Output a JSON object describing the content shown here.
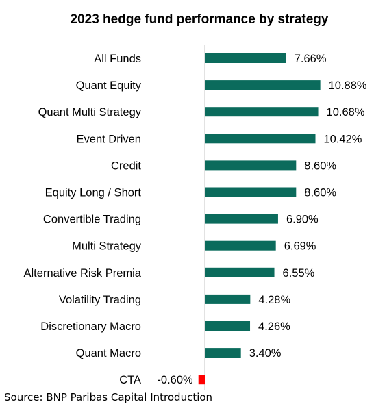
{
  "chart_data": {
    "type": "bar",
    "orientation": "horizontal",
    "title": "2023 hedge fund performance by strategy",
    "xlabel": "",
    "ylabel": "",
    "unit": "%",
    "categories": [
      "All Funds",
      "Quant Equity",
      "Quant Multi Strategy",
      "Event Driven",
      "Credit",
      "Equity Long / Short",
      "Convertible Trading",
      "Multi Strategy",
      "Alternative Risk Premia",
      "Volatility Trading",
      "Discretionary Macro",
      "Quant Macro",
      "CTA"
    ],
    "values": [
      7.66,
      10.88,
      10.68,
      10.42,
      8.6,
      8.6,
      6.9,
      6.69,
      6.55,
      4.28,
      4.26,
      3.4,
      -0.6
    ],
    "value_labels": [
      "7.66%",
      "10.88%",
      "10.68%",
      "10.42%",
      "8.60%",
      "8.60%",
      "6.90%",
      "6.69%",
      "6.55%",
      "4.28%",
      "4.26%",
      "3.40%",
      "-0.60%"
    ],
    "colors": {
      "positive": "#0b6b5c",
      "negative": "#ff0000",
      "axis": "#d9d9d9"
    },
    "grid": false,
    "legend": "none"
  },
  "source": "Source: BNP Paribas Capital Introduction"
}
